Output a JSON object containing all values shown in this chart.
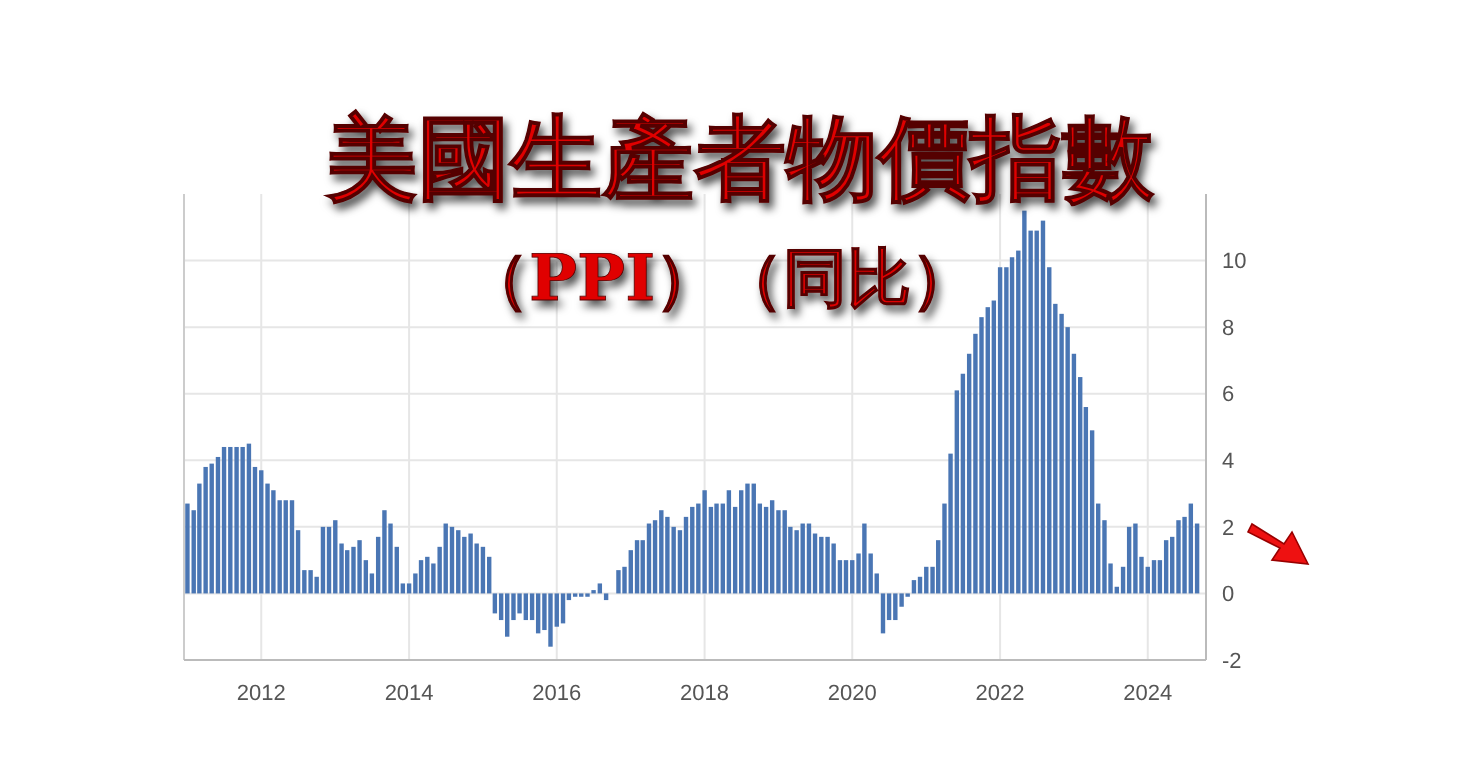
{
  "chart_data": {
    "type": "bar",
    "title": "美國生產者物價指數",
    "subtitle": "（PPI）（同比）",
    "x": [
      "2011-01",
      "2011-02",
      "2011-03",
      "2011-04",
      "2011-05",
      "2011-06",
      "2011-07",
      "2011-08",
      "2011-09",
      "2011-10",
      "2011-11",
      "2011-12",
      "2012-01",
      "2012-02",
      "2012-03",
      "2012-04",
      "2012-05",
      "2012-06",
      "2012-07",
      "2012-08",
      "2012-09",
      "2012-10",
      "2012-11",
      "2012-12",
      "2013-01",
      "2013-02",
      "2013-03",
      "2013-04",
      "2013-05",
      "2013-06",
      "2013-07",
      "2013-08",
      "2013-09",
      "2013-10",
      "2013-11",
      "2013-12",
      "2014-01",
      "2014-02",
      "2014-03",
      "2014-04",
      "2014-05",
      "2014-06",
      "2014-07",
      "2014-08",
      "2014-09",
      "2014-10",
      "2014-11",
      "2014-12",
      "2015-01",
      "2015-02",
      "2015-03",
      "2015-04",
      "2015-05",
      "2015-06",
      "2015-07",
      "2015-08",
      "2015-09",
      "2015-10",
      "2015-11",
      "2015-12",
      "2016-01",
      "2016-02",
      "2016-03",
      "2016-04",
      "2016-05",
      "2016-06",
      "2016-07",
      "2016-08",
      "2016-09",
      "2016-10",
      "2016-11",
      "2016-12",
      "2017-01",
      "2017-02",
      "2017-03",
      "2017-04",
      "2017-05",
      "2017-06",
      "2017-07",
      "2017-08",
      "2017-09",
      "2017-10",
      "2017-11",
      "2017-12",
      "2018-01",
      "2018-02",
      "2018-03",
      "2018-04",
      "2018-05",
      "2018-06",
      "2018-07",
      "2018-08",
      "2018-09",
      "2018-10",
      "2018-11",
      "2018-12",
      "2019-01",
      "2019-02",
      "2019-03",
      "2019-04",
      "2019-05",
      "2019-06",
      "2019-07",
      "2019-08",
      "2019-09",
      "2019-10",
      "2019-11",
      "2019-12",
      "2020-01",
      "2020-02",
      "2020-03",
      "2020-04",
      "2020-05",
      "2020-06",
      "2020-07",
      "2020-08",
      "2020-09",
      "2020-10",
      "2020-11",
      "2020-12",
      "2021-01",
      "2021-02",
      "2021-03",
      "2021-04",
      "2021-05",
      "2021-06",
      "2021-07",
      "2021-08",
      "2021-09",
      "2021-10",
      "2021-11",
      "2021-12",
      "2022-01",
      "2022-02",
      "2022-03",
      "2022-04",
      "2022-05",
      "2022-06",
      "2022-07",
      "2022-08",
      "2022-09",
      "2022-10",
      "2022-11",
      "2022-12",
      "2023-01",
      "2023-02",
      "2023-03",
      "2023-04",
      "2023-05",
      "2023-06",
      "2023-07",
      "2023-08",
      "2023-09",
      "2023-10",
      "2023-11",
      "2023-12",
      "2024-01",
      "2024-02",
      "2024-03",
      "2024-04",
      "2024-05",
      "2024-06",
      "2024-07",
      "2024-08",
      "2024-09"
    ],
    "series": [
      {
        "color": "#4a76b4",
        "values": [
          2.7,
          2.5,
          3.3,
          3.8,
          3.9,
          4.1,
          4.4,
          4.4,
          4.4,
          4.4,
          4.5,
          3.8,
          3.7,
          3.3,
          3.1,
          2.8,
          2.8,
          2.8,
          1.9,
          0.7,
          0.7,
          0.5,
          2.0,
          2.0,
          2.2,
          1.5,
          1.3,
          1.4,
          1.6,
          1.0,
          0.6,
          1.7,
          2.5,
          2.1,
          1.4,
          0.3,
          0.3,
          0.6,
          1.0,
          1.1,
          0.9,
          1.4,
          2.1,
          2.0,
          1.9,
          1.7,
          1.8,
          1.5,
          1.4,
          1.1,
          -0.6,
          -0.8,
          -1.3,
          -0.8,
          -0.6,
          -0.8,
          -0.8,
          -1.2,
          -1.1,
          -1.6,
          -1.0,
          -0.9,
          -0.2,
          -0.1,
          -0.1,
          -0.1,
          0.1,
          0.3,
          -0.2,
          0.0,
          0.7,
          0.8,
          1.3,
          1.6,
          1.6,
          2.1,
          2.2,
          2.5,
          2.3,
          2.0,
          1.9,
          2.3,
          2.6,
          2.7,
          3.1,
          2.6,
          2.7,
          2.7,
          3.1,
          2.6,
          3.1,
          3.3,
          3.3,
          2.7,
          2.6,
          2.8,
          2.5,
          2.5,
          2.0,
          1.9,
          2.1,
          2.1,
          1.8,
          1.7,
          1.7,
          1.5,
          1.0,
          1.0,
          1.0,
          1.2,
          2.1,
          1.2,
          0.6,
          -1.2,
          -0.8,
          -0.8,
          -0.4,
          -0.1,
          0.4,
          0.5,
          0.8,
          0.8,
          1.6,
          2.7,
          4.2,
          6.1,
          6.6,
          7.2,
          7.8,
          8.3,
          8.6,
          8.8,
          9.8,
          9.8,
          10.1,
          10.3,
          11.5,
          10.9,
          10.9,
          11.2,
          9.8,
          8.7,
          8.4,
          8.0,
          7.2,
          6.5,
          5.6,
          4.9,
          2.7,
          2.2,
          0.9,
          0.2,
          0.8,
          2.0,
          2.1,
          1.1,
          0.8,
          1.0,
          1.0,
          1.6,
          1.7,
          2.2,
          2.3,
          2.7,
          2.1
        ]
      }
    ],
    "xlim": [
      "2010-12-15",
      "2024-10-15"
    ],
    "xticks": [
      {
        "value": "2012-01",
        "label": "2012"
      },
      {
        "value": "2014-01",
        "label": "2014"
      },
      {
        "value": "2016-01",
        "label": "2016"
      },
      {
        "value": "2018-01",
        "label": "2018"
      },
      {
        "value": "2020-01",
        "label": "2020"
      },
      {
        "value": "2022-01",
        "label": "2022"
      },
      {
        "value": "2024-01",
        "label": "2024"
      }
    ],
    "ylim": [
      -2,
      12
    ],
    "yticks": [
      -2,
      0,
      2,
      4,
      6,
      8,
      10
    ],
    "grid": true
  }
}
